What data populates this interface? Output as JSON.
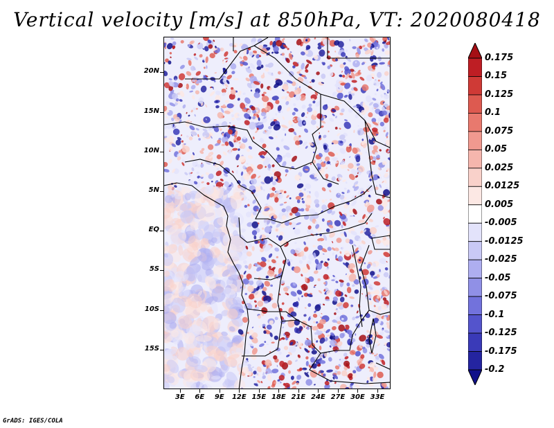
{
  "title": "Vertical velocity [m/s] at 850hPa, VT: 2020080418",
  "credit": "GrADS: IGES/COLA",
  "map": {
    "variable": "Vertical velocity",
    "units": "m/s",
    "level": "850hPa",
    "valid_time": "2020080418",
    "lat_labels": [
      "20N",
      "15N",
      "10N",
      "5N",
      "EQ",
      "5S",
      "10S",
      "15S"
    ],
    "lon_labels": [
      "3E",
      "6E",
      "9E",
      "12E",
      "15E",
      "18E",
      "21E",
      "24E",
      "27E",
      "30E",
      "33E"
    ],
    "lat_values": [
      20,
      15,
      10,
      5,
      0,
      -5,
      -10,
      -15
    ],
    "lon_values": [
      3,
      6,
      9,
      12,
      15,
      18,
      21,
      24,
      27,
      30,
      33
    ],
    "lat_range": [
      -20,
      24.5
    ],
    "lon_range": [
      0.5,
      35
    ]
  },
  "colorbar": {
    "labels": [
      "0.175",
      "0.15",
      "0.125",
      "0.1",
      "0.075",
      "0.05",
      "0.025",
      "0.0125",
      "0.005",
      "-0.005",
      "-0.0125",
      "-0.025",
      "-0.05",
      "-0.075",
      "-0.1",
      "-0.125",
      "-0.175",
      "-0.2"
    ],
    "colors": [
      "#a50f15",
      "#be1e24",
      "#cf3a36",
      "#dd5a50",
      "#e8796e",
      "#f0998f",
      "#f5b6ad",
      "#f9d1ca",
      "#fce8e4",
      "#ffffff",
      "#e3e3fb",
      "#c9c9f5",
      "#aeaef0",
      "#9090e6",
      "#7272dc",
      "#5454cc",
      "#3a3ab8",
      "#2424a0",
      "#11118a"
    ]
  },
  "icons": [
    "colorbar-up-arrow-icon",
    "colorbar-down-arrow-icon"
  ]
}
